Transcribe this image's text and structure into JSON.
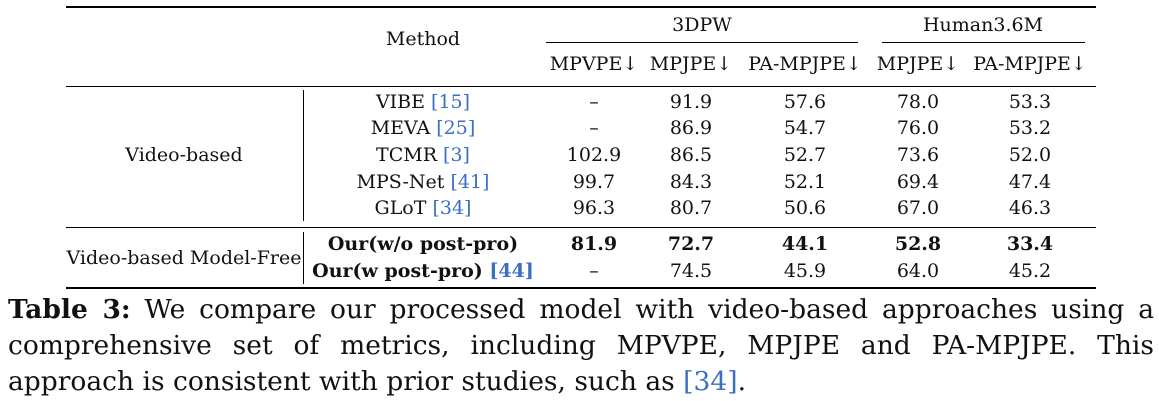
{
  "table": {
    "method_header": "Method",
    "groups": [
      {
        "label": "3DPW"
      },
      {
        "label": "Human3.6M"
      }
    ],
    "columns": [
      "MPVPE↓",
      "MPJPE↓",
      "PA-MPJPE↓",
      "MPJPE↓",
      "PA-MPJPE↓"
    ],
    "sections": [
      {
        "label": "Video-based",
        "rows": [
          {
            "name": "VIBE ",
            "ref": "[15]",
            "values": [
              "–",
              "91.9",
              "57.6",
              "78.0",
              "53.3"
            ]
          },
          {
            "name": "MEVA ",
            "ref": "[25]",
            "values": [
              "–",
              "86.9",
              "54.7",
              "76.0",
              "53.2"
            ]
          },
          {
            "name": "TCMR ",
            "ref": "[3]",
            "values": [
              "102.9",
              "86.5",
              "52.7",
              "73.6",
              "52.0"
            ]
          },
          {
            "name": "MPS-Net ",
            "ref": "[41]",
            "values": [
              "99.7",
              "84.3",
              "52.1",
              "69.4",
              "47.4"
            ]
          },
          {
            "name": "GLoT ",
            "ref": "[34]",
            "values": [
              "96.3",
              "80.7",
              "50.6",
              "67.0",
              "46.3"
            ]
          }
        ]
      },
      {
        "label": "Video-based Model-Free",
        "rows": [
          {
            "name": "Our(w/o post-pro)",
            "ref": "",
            "values": [
              "81.9",
              "72.7",
              "44.1",
              "52.8",
              "33.4"
            ]
          },
          {
            "name": "Our(w post-pro) ",
            "ref": "[44]",
            "values": [
              "–",
              "74.5",
              "45.9",
              "64.0",
              "45.2"
            ]
          }
        ]
      }
    ]
  },
  "caption": {
    "label": "Table 3:",
    "text_before_ref": " We compare our processed model with video-based approaches using a comprehensive set of metrics, including MPVPE, MPJPE and PA-MPJPE. This approach is consistent with prior studies, such as ",
    "ref": "[34]",
    "text_after_ref": "."
  }
}
